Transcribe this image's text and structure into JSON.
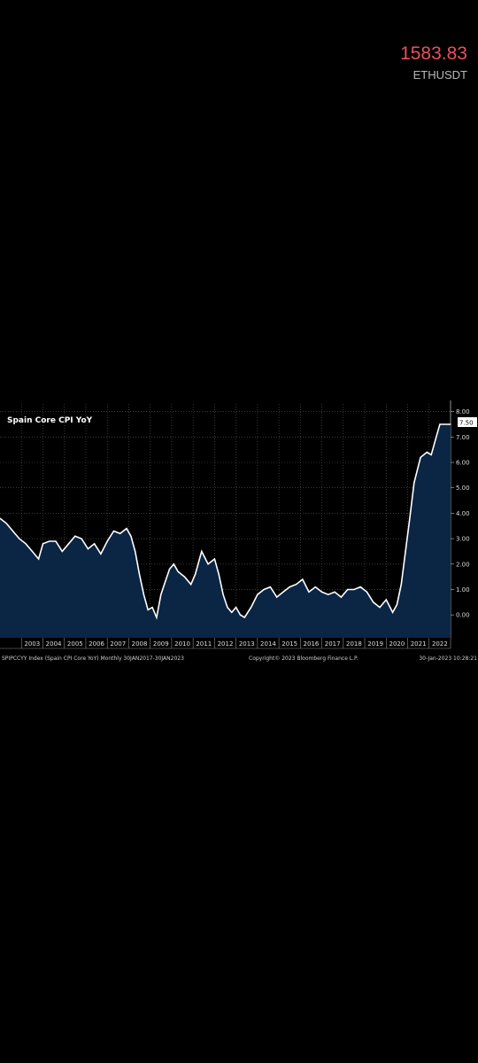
{
  "ticker": {
    "price": "1583.83",
    "symbol": "ETHUSDT"
  },
  "chart_data": {
    "type": "area",
    "title": "Spain Core CPI YoY",
    "footer_left": "SPIPCCYY Index (Spain CPI Core YoY)  Monthly 30JAN2017-30JAN2023",
    "footer_center": "Copyright© 2023 Bloomberg Finance L.P.",
    "footer_right": "30-Jan-2023 10:28:21",
    "last_value_label": "7.50",
    "x_tick_labels": [
      "2003",
      "2004",
      "2005",
      "2006",
      "2007",
      "2008",
      "2009",
      "2010",
      "2011",
      "2012",
      "2013",
      "2014",
      "2015",
      "2016",
      "2017",
      "2018",
      "2019",
      "2020",
      "2021",
      "2022"
    ],
    "y_tick_labels": [
      "8.00",
      "7.00",
      "6.00",
      "5.00",
      "4.00",
      "3.00",
      "2.00",
      "1.00",
      "0.00"
    ],
    "ylim": [
      -0.9,
      8.3
    ],
    "xlim": [
      2002.0,
      2023.0
    ],
    "grid": true,
    "colors": {
      "line": "#ffffff",
      "fill": "#0b2545",
      "grid": "#5a5a5a",
      "background": "#000000"
    },
    "x": [
      2002.0,
      2002.3,
      2002.6,
      2002.9,
      2003.2,
      2003.5,
      2003.8,
      2004.0,
      2004.3,
      2004.6,
      2004.9,
      2005.2,
      2005.5,
      2005.8,
      2006.1,
      2006.4,
      2006.7,
      2007.0,
      2007.3,
      2007.6,
      2007.9,
      2008.1,
      2008.3,
      2008.5,
      2008.7,
      2008.9,
      2009.1,
      2009.3,
      2009.5,
      2009.7,
      2009.9,
      2010.1,
      2010.3,
      2010.6,
      2010.9,
      2011.1,
      2011.4,
      2011.7,
      2012.0,
      2012.2,
      2012.4,
      2012.6,
      2012.8,
      2013.0,
      2013.2,
      2013.4,
      2013.7,
      2014.0,
      2014.3,
      2014.6,
      2014.9,
      2015.2,
      2015.5,
      2015.8,
      2016.1,
      2016.4,
      2016.7,
      2017.0,
      2017.3,
      2017.6,
      2017.9,
      2018.2,
      2018.5,
      2018.8,
      2019.1,
      2019.4,
      2019.7,
      2020.0,
      2020.3,
      2020.5,
      2020.7,
      2020.9,
      2021.1,
      2021.3,
      2021.6,
      2021.9,
      2022.1,
      2022.3,
      2022.5,
      2022.7,
      2022.9,
      2023.0
    ],
    "y": [
      3.8,
      3.6,
      3.3,
      3.0,
      2.8,
      2.5,
      2.2,
      2.8,
      2.9,
      2.9,
      2.5,
      2.8,
      3.1,
      3.0,
      2.6,
      2.8,
      2.4,
      2.9,
      3.3,
      3.2,
      3.4,
      3.1,
      2.5,
      1.6,
      0.8,
      0.2,
      0.3,
      -0.1,
      0.8,
      1.3,
      1.8,
      2.0,
      1.7,
      1.5,
      1.2,
      1.6,
      2.5,
      2.0,
      2.2,
      1.6,
      0.8,
      0.3,
      0.1,
      0.3,
      0.0,
      -0.1,
      0.3,
      0.8,
      1.0,
      1.1,
      0.7,
      0.9,
      1.1,
      1.2,
      1.4,
      0.9,
      1.1,
      0.9,
      0.8,
      0.9,
      0.7,
      1.0,
      1.0,
      1.1,
      0.9,
      0.5,
      0.3,
      0.6,
      0.1,
      0.4,
      1.2,
      2.5,
      3.8,
      5.2,
      6.2,
      6.4,
      6.3,
      6.9,
      7.5,
      7.5,
      7.5,
      7.5
    ]
  }
}
